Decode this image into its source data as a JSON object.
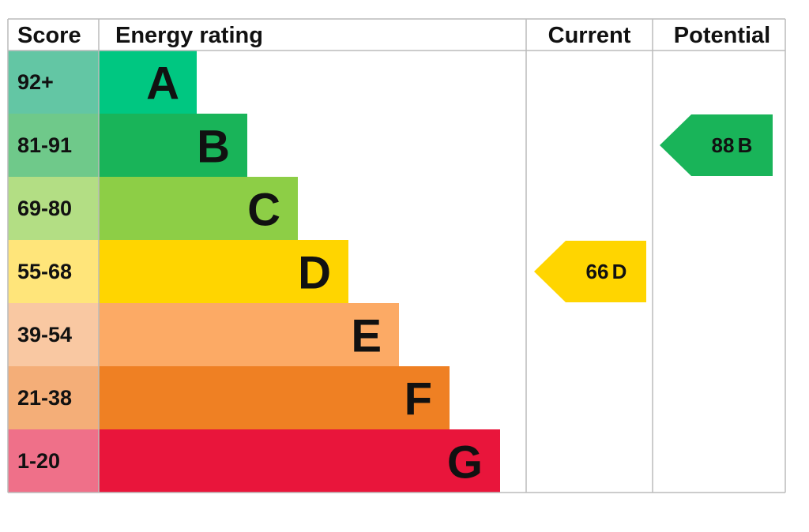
{
  "header": [
    "Score",
    "Energy rating",
    "Current",
    "Potential"
  ],
  "bands": [
    {
      "score": "92+",
      "letter": "A",
      "color": "#00c781",
      "score_color": "#63c6a4"
    },
    {
      "score": "81-91",
      "letter": "B",
      "color": "#19b459",
      "score_color": "#6fc98a"
    },
    {
      "score": "69-80",
      "letter": "C",
      "color": "#8dce46",
      "score_color": "#b3de84"
    },
    {
      "score": "55-68",
      "letter": "D",
      "color": "#ffd500",
      "score_color": "#ffe57a"
    },
    {
      "score": "39-54",
      "letter": "E",
      "color": "#fcaa65",
      "score_color": "#f9c8a2"
    },
    {
      "score": "21-38",
      "letter": "F",
      "color": "#ef8023",
      "score_color": "#f4ae78"
    },
    {
      "score": "1-20",
      "letter": "G",
      "color": "#e9153b",
      "score_color": "#ef7089"
    }
  ],
  "current": {
    "value": 66,
    "letter": "D"
  },
  "potential": {
    "value": 88,
    "letter": "B"
  }
}
